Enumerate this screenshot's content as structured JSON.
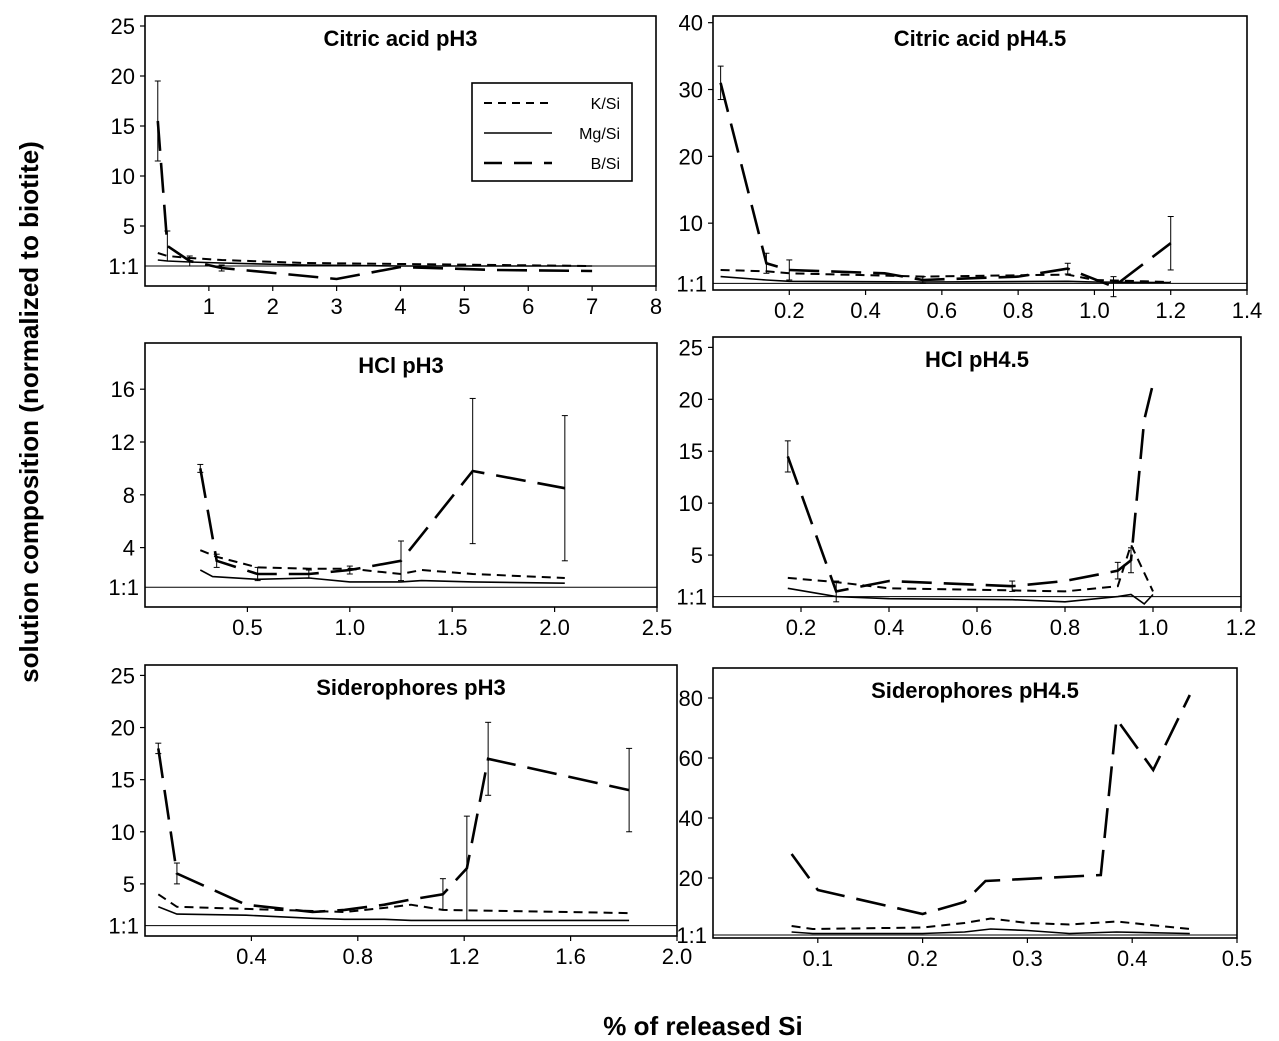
{
  "figure": {
    "ylabel": "solution composition (normalized to biotite)",
    "xlabel": "% of released Si",
    "legend": [
      {
        "label": "K/Si",
        "style": "short-dash"
      },
      {
        "label": "Mg/Si",
        "style": "solid"
      },
      {
        "label": "B/Si",
        "style": "long-dash"
      }
    ]
  },
  "chart_data": [
    {
      "type": "line",
      "title": "Citric acid pH3",
      "xlim": [
        0,
        8
      ],
      "ylim": [
        -1,
        26
      ],
      "xticks": [
        1,
        2,
        3,
        4,
        5,
        6,
        7,
        8
      ],
      "yticks": [
        5,
        10,
        15,
        20,
        25
      ],
      "ref_label": "1:1",
      "ref_value": 1,
      "legend_position": "top-right",
      "series": [
        {
          "name": "K/Si",
          "style": "short-dash",
          "x": [
            0.2,
            0.35,
            0.7,
            1.2,
            2.5,
            4.0,
            5.5,
            7.0
          ],
          "y": [
            2.3,
            2.0,
            1.8,
            1.6,
            1.3,
            1.2,
            1.1,
            1.0
          ]
        },
        {
          "name": "Mg/Si",
          "style": "solid",
          "x": [
            0.2,
            0.35,
            0.7,
            1.2,
            2.5,
            4.0,
            5.5,
            7.0
          ],
          "y": [
            1.6,
            1.5,
            1.4,
            1.3,
            1.1,
            1.0,
            1.0,
            1.0
          ]
        },
        {
          "name": "B/Si",
          "style": "long-dash",
          "x": [
            0.2,
            0.35,
            0.7,
            1.2,
            3.0,
            4.0,
            5.5,
            7.0
          ],
          "y": [
            15.5,
            3.0,
            1.5,
            0.8,
            -0.3,
            0.9,
            0.6,
            0.5
          ],
          "err": [
            4.0,
            1.5,
            0.5,
            0.3,
            0,
            0,
            0,
            0
          ]
        }
      ]
    },
    {
      "type": "line",
      "title": "Citric acid pH4.5",
      "xlim": [
        0,
        1.4
      ],
      "ylim": [
        0,
        41
      ],
      "xticks": [
        0.2,
        0.4,
        0.6,
        0.8,
        1.0,
        1.2,
        1.4
      ],
      "xtick_labels": [
        "0.2",
        "0.4",
        "0.6",
        "0.8",
        "1.0",
        "1.2",
        "1.4"
      ],
      "yticks": [
        10,
        20,
        30,
        40
      ],
      "ref_label": "1:1",
      "ref_value": 1,
      "series": [
        {
          "name": "K/Si",
          "style": "short-dash",
          "x": [
            0.02,
            0.14,
            0.2,
            0.55,
            0.93,
            1.0,
            1.2
          ],
          "y": [
            3.0,
            2.8,
            2.5,
            2.0,
            2.3,
            1.5,
            1.2
          ]
        },
        {
          "name": "Mg/Si",
          "style": "solid",
          "x": [
            0.02,
            0.14,
            0.2,
            0.55,
            0.93,
            1.0,
            1.2
          ],
          "y": [
            2.0,
            1.5,
            1.3,
            1.2,
            1.3,
            1.2,
            1.1
          ]
        },
        {
          "name": "B/Si",
          "style": "long-dash",
          "x": [
            0.02,
            0.14,
            0.2,
            0.45,
            0.55,
            0.8,
            0.93,
            1.05,
            1.2
          ],
          "y": [
            31.0,
            4.0,
            3.0,
            2.5,
            1.5,
            2.0,
            3.2,
            0.5,
            7.0
          ],
          "err": [
            2.5,
            1.5,
            1.5,
            0,
            0.5,
            0,
            0.8,
            1.5,
            4.0
          ]
        }
      ]
    },
    {
      "type": "line",
      "title": "HCl pH3",
      "xlim": [
        0,
        2.5
      ],
      "ylim": [
        -0.5,
        19.5
      ],
      "xticks": [
        0.5,
        1.0,
        1.5,
        2.0,
        2.5
      ],
      "xtick_labels": [
        "0.5",
        "1.0",
        "1.5",
        "2.0",
        "2.5"
      ],
      "yticks": [
        4,
        8,
        12,
        16
      ],
      "ref_label": "1:1",
      "ref_value": 1,
      "series": [
        {
          "name": "K/Si",
          "style": "short-dash",
          "x": [
            0.27,
            0.35,
            0.55,
            0.8,
            1.0,
            1.25,
            1.35,
            1.6,
            2.05
          ],
          "y": [
            3.8,
            3.3,
            2.5,
            2.4,
            2.4,
            2.0,
            2.3,
            2.0,
            1.7
          ]
        },
        {
          "name": "Mg/Si",
          "style": "solid",
          "x": [
            0.27,
            0.33,
            0.55,
            0.8,
            1.0,
            1.25,
            1.35,
            1.6,
            2.05
          ],
          "y": [
            2.3,
            1.8,
            1.6,
            1.7,
            1.4,
            1.4,
            1.5,
            1.4,
            1.3
          ]
        },
        {
          "name": "B/Si",
          "style": "long-dash",
          "x": [
            0.27,
            0.35,
            0.55,
            0.8,
            1.0,
            1.25,
            1.6,
            2.05
          ],
          "y": [
            10.0,
            3.0,
            2.0,
            2.0,
            2.3,
            3.0,
            9.8,
            8.5
          ],
          "err": [
            0.3,
            0.5,
            0.5,
            0.3,
            0.3,
            1.5,
            5.5,
            5.5
          ]
        }
      ]
    },
    {
      "type": "line",
      "title": "HCl pH4.5",
      "xlim": [
        0,
        1.2
      ],
      "ylim": [
        0,
        26
      ],
      "xticks": [
        0.2,
        0.4,
        0.6,
        0.8,
        1.0,
        1.2
      ],
      "xtick_labels": [
        "0.2",
        "0.4",
        "0.6",
        "0.8",
        "1.0",
        "1.2"
      ],
      "yticks": [
        5,
        10,
        15,
        20,
        25
      ],
      "ref_label": "1:1",
      "ref_value": 1,
      "series": [
        {
          "name": "K/Si",
          "style": "short-dash",
          "x": [
            0.17,
            0.28,
            0.4,
            0.68,
            0.8,
            0.92,
            0.95,
            1.0
          ],
          "y": [
            2.8,
            2.4,
            1.8,
            1.6,
            1.5,
            2.0,
            6.0,
            1.5
          ]
        },
        {
          "name": "Mg/Si",
          "style": "solid",
          "x": [
            0.17,
            0.28,
            0.4,
            0.68,
            0.8,
            0.92,
            0.95,
            0.98,
            1.0
          ],
          "y": [
            1.8,
            1.0,
            0.8,
            0.7,
            0.5,
            1.0,
            1.2,
            0.3,
            1.2
          ]
        },
        {
          "name": "B/Si",
          "style": "long-dash",
          "x": [
            0.17,
            0.28,
            0.4,
            0.68,
            0.8,
            0.92,
            0.95,
            0.98,
            1.0
          ],
          "y": [
            14.5,
            1.5,
            2.5,
            2.0,
            2.5,
            3.5,
            4.5,
            18.0,
            21.5
          ],
          "err": [
            1.5,
            1.0,
            0,
            0.5,
            0,
            0.8,
            1.2,
            0,
            0
          ]
        }
      ]
    },
    {
      "type": "line",
      "title": "Siderophores pH3",
      "xlim": [
        0,
        2.0
      ],
      "ylim": [
        0,
        26
      ],
      "xticks": [
        0.4,
        0.8,
        1.2,
        1.6,
        2.0
      ],
      "xtick_labels": [
        "0.4",
        "0.8",
        "1.2",
        "1.6",
        "2.0"
      ],
      "yticks": [
        5,
        10,
        15,
        20,
        25
      ],
      "ref_label": "1:1",
      "ref_value": 1,
      "series": [
        {
          "name": "K/Si",
          "style": "short-dash",
          "x": [
            0.05,
            0.12,
            0.38,
            0.63,
            0.75,
            0.9,
            1.0,
            1.12,
            1.82
          ],
          "y": [
            4.0,
            2.8,
            2.6,
            2.4,
            2.3,
            2.7,
            3.0,
            2.5,
            2.2
          ]
        },
        {
          "name": "Mg/Si",
          "style": "solid",
          "x": [
            0.05,
            0.12,
            0.38,
            0.63,
            0.75,
            0.9,
            1.0,
            1.12,
            1.82
          ],
          "y": [
            2.8,
            2.1,
            2.0,
            1.7,
            1.6,
            1.6,
            1.5,
            1.5,
            1.5
          ]
        },
        {
          "name": "B/Si",
          "style": "long-dash",
          "x": [
            0.05,
            0.12,
            0.38,
            0.63,
            0.75,
            0.9,
            1.0,
            1.12,
            1.21,
            1.29,
            1.82
          ],
          "y": [
            18.0,
            6.0,
            3.0,
            2.3,
            2.5,
            3.0,
            3.5,
            4.0,
            6.5,
            17.0,
            14.0
          ],
          "err": [
            0.5,
            1.0,
            0,
            0,
            0,
            0,
            0,
            1.5,
            5.0,
            3.5,
            4.0
          ]
        }
      ]
    },
    {
      "type": "line",
      "title": "Siderophores pH4.5",
      "xlim": [
        0,
        0.5
      ],
      "ylim": [
        0,
        90
      ],
      "xticks": [
        0.1,
        0.2,
        0.3,
        0.4,
        0.5
      ],
      "xtick_labels": [
        "0.1",
        "0.2",
        "0.3",
        "0.4",
        "0.5"
      ],
      "yticks": [
        20,
        40,
        60,
        80
      ],
      "ref_label": "1:1",
      "ref_value": 1,
      "series": [
        {
          "name": "K/Si",
          "style": "short-dash",
          "x": [
            0.075,
            0.095,
            0.2,
            0.24,
            0.265,
            0.3,
            0.34,
            0.385,
            0.455
          ],
          "y": [
            4.0,
            3.0,
            3.5,
            5.0,
            6.5,
            5.0,
            4.5,
            5.5,
            3.0
          ]
        },
        {
          "name": "Mg/Si",
          "style": "solid",
          "x": [
            0.075,
            0.095,
            0.2,
            0.24,
            0.265,
            0.3,
            0.34,
            0.385,
            0.455
          ],
          "y": [
            2.0,
            1.5,
            1.5,
            2.0,
            3.0,
            2.5,
            1.5,
            2.0,
            1.5
          ]
        },
        {
          "name": "B/Si",
          "style": "long-dash",
          "x": [
            0.075,
            0.1,
            0.2,
            0.24,
            0.26,
            0.37,
            0.385,
            0.42,
            0.455
          ],
          "y": [
            28.0,
            16.0,
            8.0,
            12.0,
            19.0,
            21.0,
            73.0,
            56.0,
            81.0
          ]
        }
      ]
    }
  ]
}
